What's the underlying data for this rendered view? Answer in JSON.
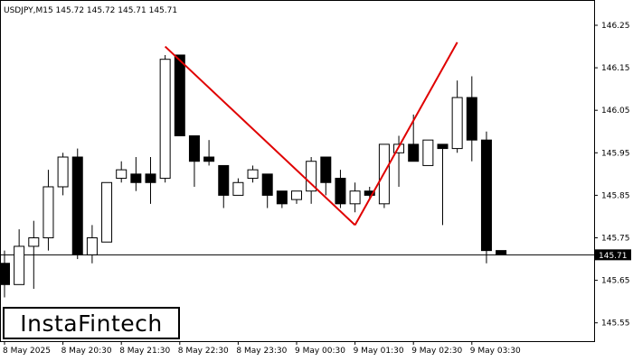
{
  "chart_data": {
    "type": "candlestick",
    "header": "USDJPY,M15  145.72 145.72 145.71 145.71",
    "ylim": [
      145.49,
      146.28
    ],
    "y_ticks": [
      {
        "value": 146.25,
        "label": "146.25"
      },
      {
        "value": 146.15,
        "label": "146.15"
      },
      {
        "value": 146.05,
        "label": "146.05"
      },
      {
        "value": 145.95,
        "label": "145.95"
      },
      {
        "value": 145.85,
        "label": "145.85"
      },
      {
        "value": 145.75,
        "label": "145.75"
      },
      {
        "value": 145.65,
        "label": "145.65"
      },
      {
        "value": 145.55,
        "label": "145.55"
      }
    ],
    "x_ticks": [
      {
        "index": 0,
        "label": "8 May 2025"
      },
      {
        "index": 4,
        "label": "8 May 20:30"
      },
      {
        "index": 8,
        "label": "8 May 21:30"
      },
      {
        "index": 12,
        "label": "8 May 22:30"
      },
      {
        "index": 16,
        "label": "8 May 23:30"
      },
      {
        "index": 20,
        "label": "9 May 00:30"
      },
      {
        "index": 24,
        "label": "9 May 01:30"
      },
      {
        "index": 28,
        "label": "9 May 02:30"
      },
      {
        "index": 32,
        "label": "9 May 03:30"
      }
    ],
    "current_price": {
      "value": 145.71,
      "label": "145.71"
    },
    "candles": [
      {
        "o": 145.69,
        "h": 145.72,
        "l": 145.61,
        "c": 145.64
      },
      {
        "o": 145.64,
        "h": 145.77,
        "l": 145.64,
        "c": 145.73
      },
      {
        "o": 145.73,
        "h": 145.79,
        "l": 145.63,
        "c": 145.75
      },
      {
        "o": 145.75,
        "h": 145.91,
        "l": 145.72,
        "c": 145.87
      },
      {
        "o": 145.87,
        "h": 145.95,
        "l": 145.85,
        "c": 145.94
      },
      {
        "o": 145.94,
        "h": 145.96,
        "l": 145.7,
        "c": 145.71
      },
      {
        "o": 145.71,
        "h": 145.78,
        "l": 145.69,
        "c": 145.75
      },
      {
        "o": 145.74,
        "h": 145.88,
        "l": 145.74,
        "c": 145.88
      },
      {
        "o": 145.89,
        "h": 145.93,
        "l": 145.88,
        "c": 145.91
      },
      {
        "o": 145.9,
        "h": 145.94,
        "l": 145.86,
        "c": 145.88
      },
      {
        "o": 145.9,
        "h": 145.94,
        "l": 145.83,
        "c": 145.88
      },
      {
        "o": 145.89,
        "h": 146.18,
        "l": 145.88,
        "c": 146.17
      },
      {
        "o": 146.18,
        "h": 146.18,
        "l": 145.99,
        "c": 145.99
      },
      {
        "o": 145.99,
        "h": 145.99,
        "l": 145.87,
        "c": 145.93
      },
      {
        "o": 145.94,
        "h": 145.98,
        "l": 145.92,
        "c": 145.93
      },
      {
        "o": 145.92,
        "h": 145.92,
        "l": 145.82,
        "c": 145.85
      },
      {
        "o": 145.85,
        "h": 145.89,
        "l": 145.85,
        "c": 145.88
      },
      {
        "o": 145.89,
        "h": 145.92,
        "l": 145.88,
        "c": 145.91
      },
      {
        "o": 145.9,
        "h": 145.9,
        "l": 145.82,
        "c": 145.85
      },
      {
        "o": 145.86,
        "h": 145.86,
        "l": 145.82,
        "c": 145.83
      },
      {
        "o": 145.84,
        "h": 145.86,
        "l": 145.83,
        "c": 145.86
      },
      {
        "o": 145.86,
        "h": 145.94,
        "l": 145.83,
        "c": 145.93
      },
      {
        "o": 145.94,
        "h": 145.94,
        "l": 145.85,
        "c": 145.88
      },
      {
        "o": 145.89,
        "h": 145.91,
        "l": 145.82,
        "c": 145.83
      },
      {
        "o": 145.83,
        "h": 145.88,
        "l": 145.81,
        "c": 145.86
      },
      {
        "o": 145.86,
        "h": 145.87,
        "l": 145.84,
        "c": 145.85
      },
      {
        "o": 145.83,
        "h": 145.97,
        "l": 145.82,
        "c": 145.97
      },
      {
        "o": 145.95,
        "h": 145.99,
        "l": 145.87,
        "c": 145.97
      },
      {
        "o": 145.97,
        "h": 146.04,
        "l": 145.93,
        "c": 145.93
      },
      {
        "o": 145.92,
        "h": 145.98,
        "l": 145.92,
        "c": 145.98
      },
      {
        "o": 145.97,
        "h": 145.97,
        "l": 145.78,
        "c": 145.96
      },
      {
        "o": 145.96,
        "h": 146.12,
        "l": 145.95,
        "c": 146.08
      },
      {
        "o": 146.08,
        "h": 146.13,
        "l": 145.93,
        "c": 145.98
      },
      {
        "o": 145.98,
        "h": 146.0,
        "l": 145.69,
        "c": 145.72
      },
      {
        "o": 145.72,
        "h": 145.72,
        "l": 145.71,
        "c": 145.71
      }
    ],
    "pattern_lines": [
      {
        "from": {
          "index": 11,
          "price": 146.2
        },
        "to": {
          "index": 24,
          "price": 145.78
        }
      },
      {
        "from": {
          "index": 24,
          "price": 145.78
        },
        "to": {
          "index": 31,
          "price": 146.21
        }
      }
    ],
    "colors": {
      "pattern_line": "#e00000",
      "candle": "#000000",
      "background": "#ffffff"
    }
  },
  "brand": {
    "logo_text": "InstaFintech"
  }
}
